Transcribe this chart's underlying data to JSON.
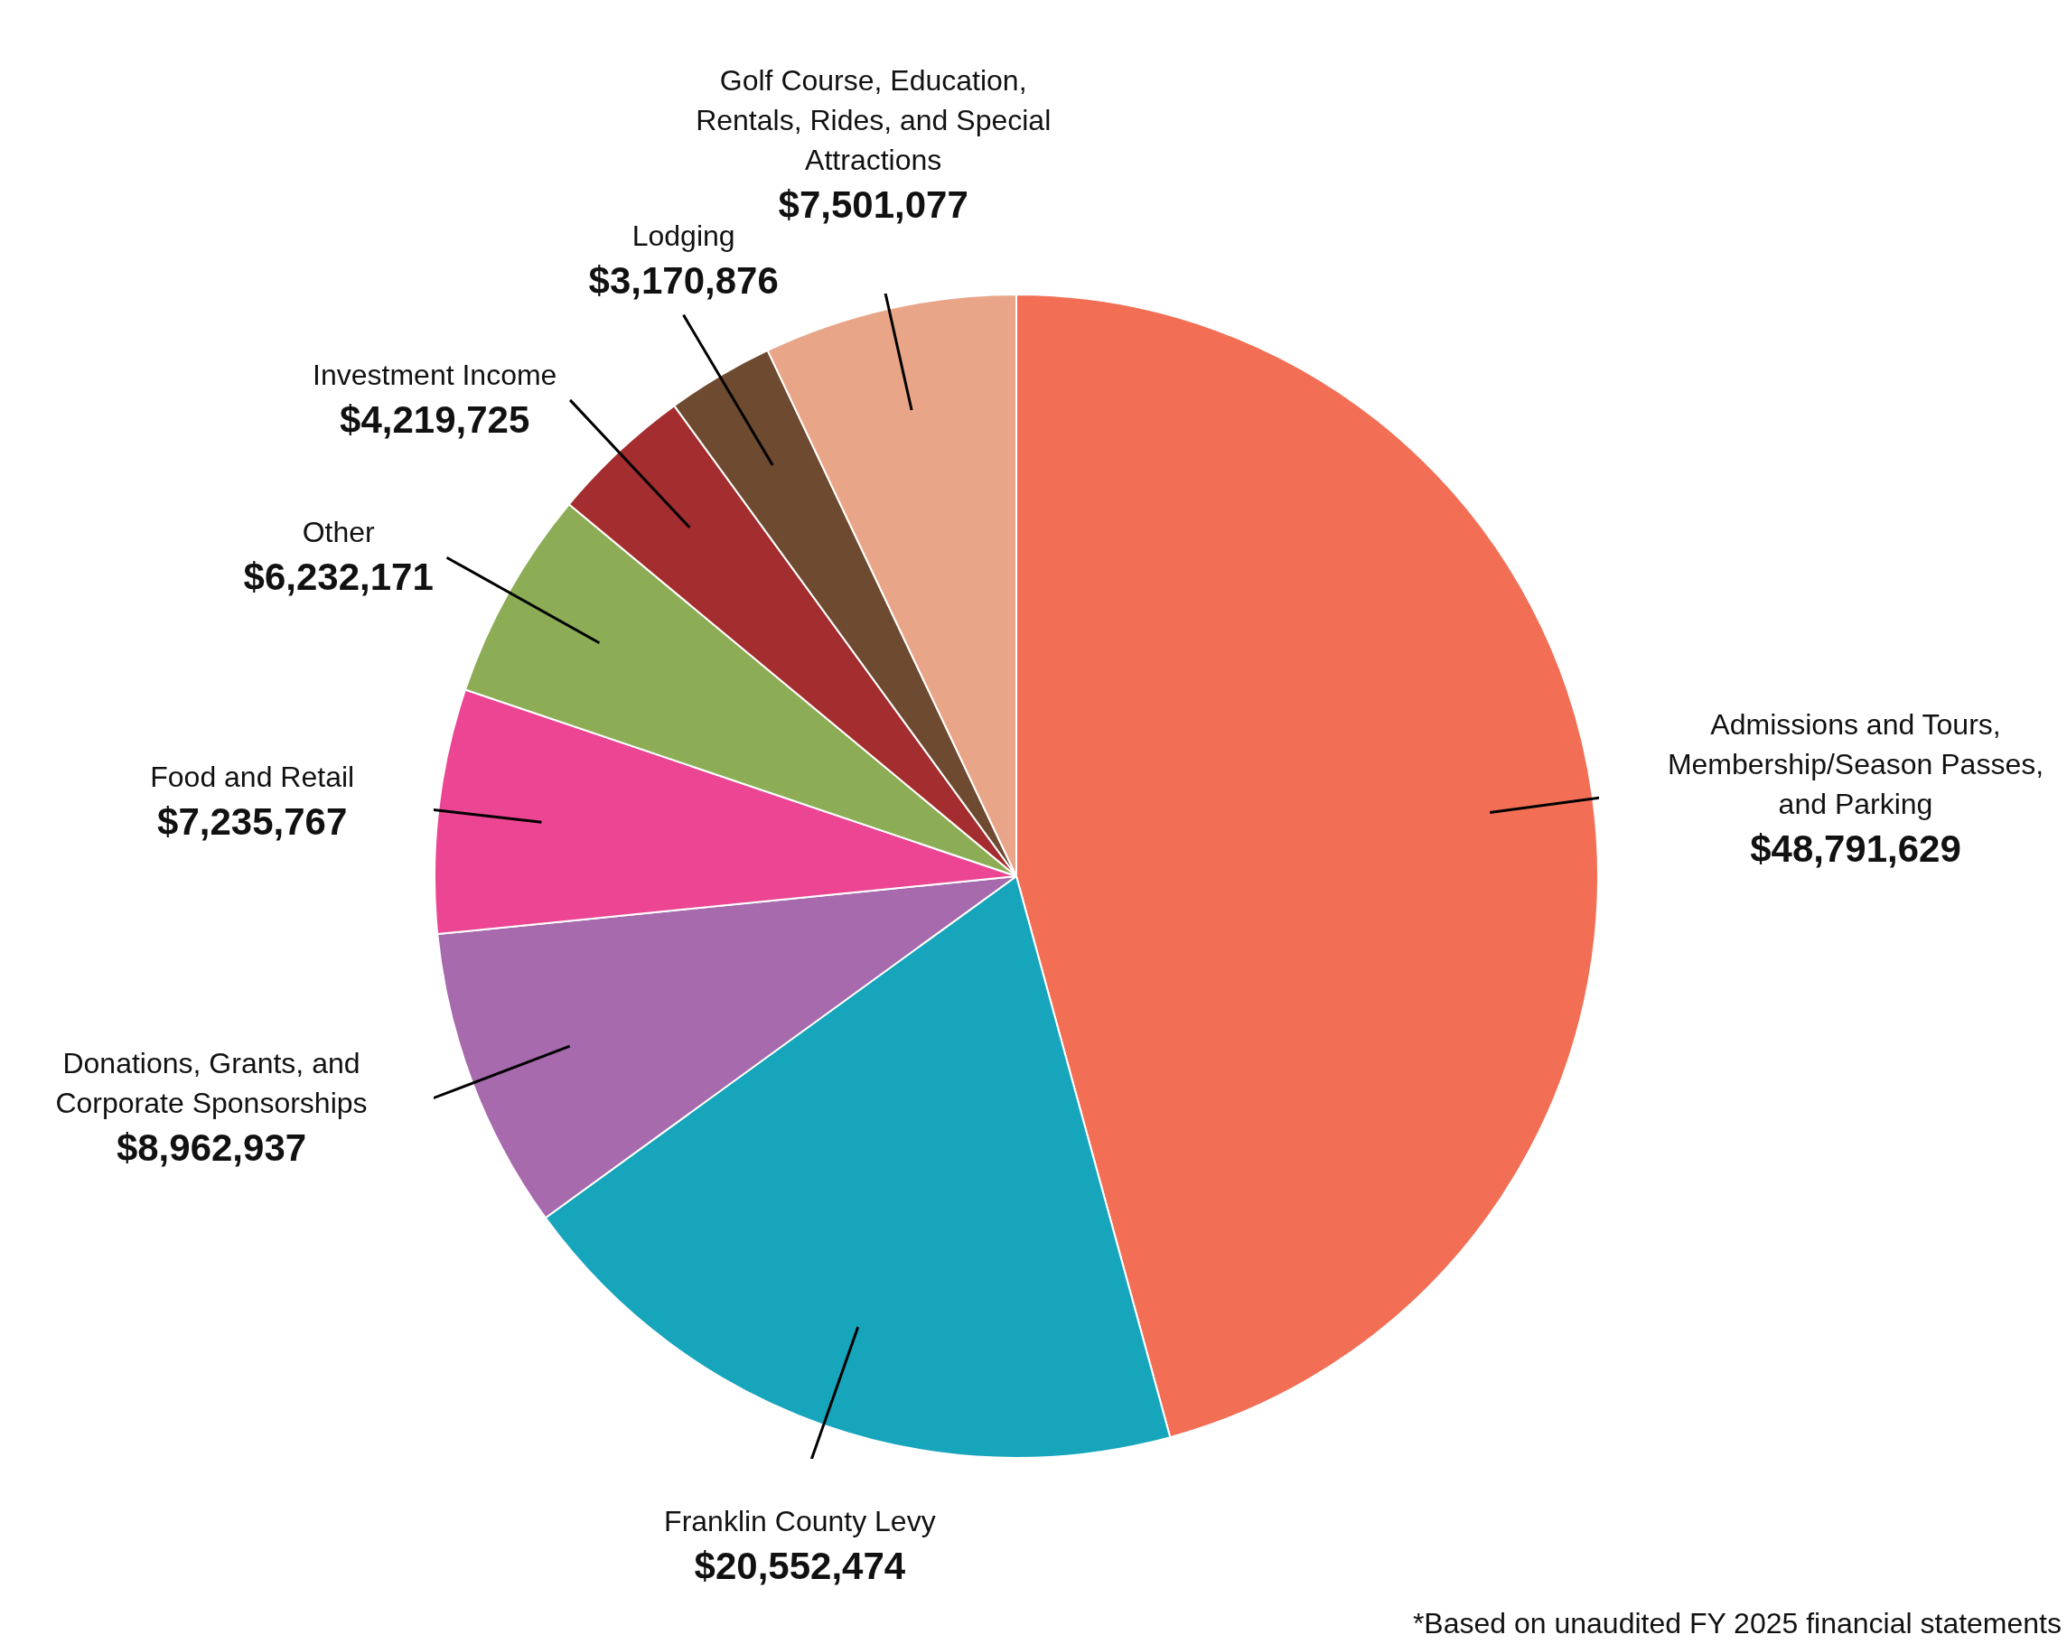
{
  "chart_data": {
    "type": "pie",
    "categories": [
      "Admissions and Tours, Membership/Season Passes, and Parking",
      "Franklin County Levy",
      "Donations, Grants, and Corporate Sponsorships",
      "Food and Retail",
      "Other",
      "Investment Income",
      "Lodging",
      "Golf Course, Education, Rentals, Rides, and Special Attractions"
    ],
    "values": [
      48791629,
      20552474,
      8962937,
      7235767,
      6232171,
      4219725,
      3170876,
      7501077
    ],
    "colors": [
      "#f26f55",
      "#17a5bc",
      "#a66aad",
      "#ec4593",
      "#8cad55",
      "#a32d2f",
      "#6e4b30",
      "#e9a588"
    ],
    "value_labels": [
      "$48,791,629",
      "$20,552,474",
      "$8,962,937",
      "$7,235,767",
      "$6,232,171",
      "$4,219,725",
      "$3,170,876",
      "$7,501,077"
    ],
    "legend": false,
    "annotations": [
      "*Based on unaudited FY 2025 financial statements"
    ]
  }
}
